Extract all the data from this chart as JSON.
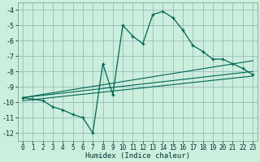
{
  "xlabel": "Humidex (Indice chaleur)",
  "bg_color": "#cceedd",
  "grid_color": "#99bbbb",
  "line_color": "#006655",
  "xlim": [
    -0.5,
    23.5
  ],
  "ylim": [
    -12.5,
    -3.5
  ],
  "yticks": [
    -12,
    -11,
    -10,
    -9,
    -8,
    -7,
    -6,
    -5,
    -4
  ],
  "xticks": [
    0,
    1,
    2,
    3,
    4,
    5,
    6,
    7,
    8,
    9,
    10,
    11,
    12,
    13,
    14,
    15,
    16,
    17,
    18,
    19,
    20,
    21,
    22,
    23
  ],
  "main_line_x": [
    0,
    1,
    2,
    3,
    4,
    5,
    6,
    7,
    8,
    9,
    10,
    11,
    12,
    13,
    14,
    15,
    16,
    17,
    18,
    19,
    20,
    21,
    22,
    23
  ],
  "main_line_y": [
    -9.7,
    -9.8,
    -9.9,
    -10.3,
    -10.5,
    -10.8,
    -11.0,
    -12.0,
    -7.5,
    -9.5,
    -5.0,
    -5.7,
    -6.2,
    -4.3,
    -4.1,
    -4.5,
    -5.3,
    -6.3,
    -6.7,
    -7.2,
    -7.2,
    -7.5,
    -7.8,
    -8.2
  ],
  "trend_lines": [
    {
      "x0": 0,
      "y0": -9.7,
      "x1": 23,
      "y1": -7.3
    },
    {
      "x0": 0,
      "y0": -9.7,
      "x1": 23,
      "y1": -8.0
    },
    {
      "x0": 0,
      "y0": -9.9,
      "x1": 23,
      "y1": -8.3
    }
  ]
}
